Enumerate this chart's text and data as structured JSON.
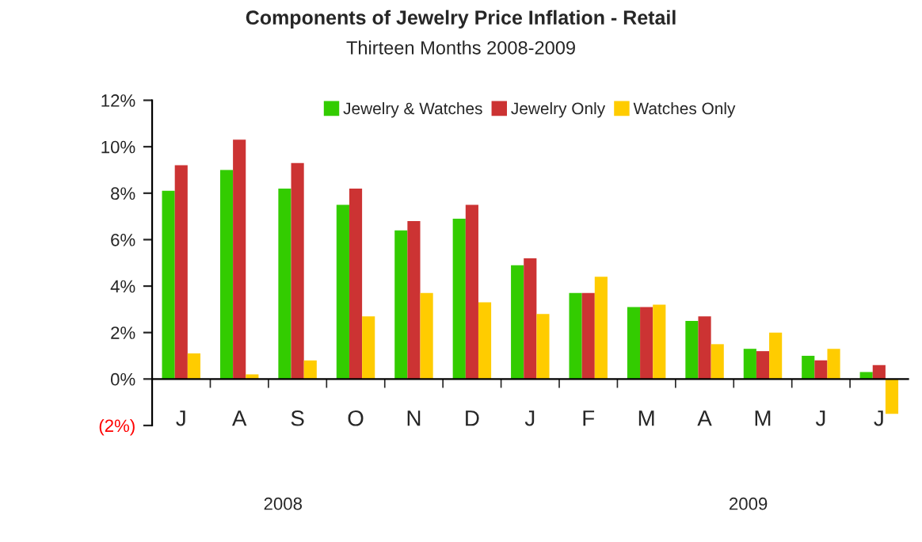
{
  "chart_data": {
    "type": "bar",
    "title": "Components of Jewelry Price Inflation - Retail",
    "subtitle": "Thirteen Months 2008-2009",
    "categories": [
      "J",
      "A",
      "S",
      "O",
      "N",
      "D",
      "J",
      "F",
      "M",
      "A",
      "M",
      "J",
      "J"
    ],
    "series": [
      {
        "name": "Jewelry & Watches",
        "color": "#33cc00",
        "values": [
          8.1,
          9.0,
          8.2,
          7.5,
          6.4,
          6.9,
          4.9,
          3.7,
          3.1,
          2.5,
          1.3,
          1.0,
          0.3
        ]
      },
      {
        "name": "Jewelry Only",
        "color": "#cc3333",
        "values": [
          9.2,
          10.3,
          9.3,
          8.2,
          6.8,
          7.5,
          5.2,
          3.7,
          3.1,
          2.7,
          1.2,
          0.8,
          0.6
        ]
      },
      {
        "name": "Watches Only",
        "color": "#ffcc00",
        "values": [
          1.1,
          0.2,
          0.8,
          2.7,
          3.7,
          3.3,
          2.8,
          4.4,
          3.2,
          1.5,
          2.0,
          1.3,
          -1.5
        ]
      }
    ],
    "ylim": [
      -2,
      12
    ],
    "yticks": [
      {
        "value": -2,
        "label": "(2%)"
      },
      {
        "value": 0,
        "label": "0%"
      },
      {
        "value": 2,
        "label": "2%"
      },
      {
        "value": 4,
        "label": "4%"
      },
      {
        "value": 6,
        "label": "6%"
      },
      {
        "value": 8,
        "label": "8%"
      },
      {
        "value": 10,
        "label": "10%"
      },
      {
        "value": 12,
        "label": "12%"
      }
    ],
    "annotations": [
      "2008",
      "2009"
    ],
    "legend": "top"
  }
}
